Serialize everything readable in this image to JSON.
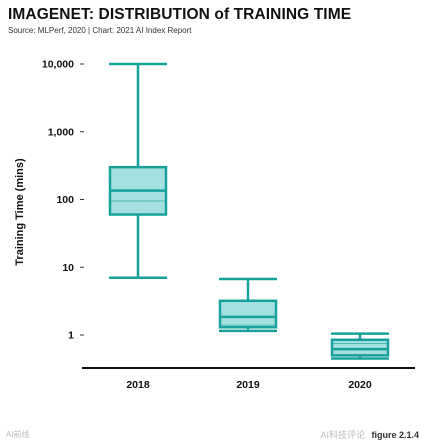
{
  "header": {
    "title": "IMAGENET: DISTRIBUTION of TRAINING TIME",
    "subtitle": "Source: MLPerf, 2020 | Chart: 2021 AI Index Report"
  },
  "figure_label": "figure 2.1.4",
  "watermarks": [
    "AI前线",
    "AI科技评论"
  ],
  "colors": {
    "box_fill": "#a6dfe0",
    "box_stroke": "#16a19a",
    "axis": "#111111"
  },
  "chart_data": {
    "type": "box",
    "title": "IMAGENET: DISTRIBUTION of TRAINING TIME",
    "xlabel": "",
    "ylabel": "Training Time (mins)",
    "yscale": "log",
    "ylim": [
      0.3,
      10000
    ],
    "yticks": [
      1,
      10,
      100,
      1000,
      10000
    ],
    "ytick_labels": [
      "1",
      "10",
      "100",
      "1,000",
      "10,000"
    ],
    "categories": [
      "2018",
      "2019",
      "2020"
    ],
    "boxes": [
      {
        "category": "2018",
        "min": 7,
        "q1": 60,
        "median": 135,
        "q3": 300,
        "max": 10000,
        "inner_line": 95
      },
      {
        "category": "2019",
        "min": 1.15,
        "q1": 1.3,
        "median": 1.85,
        "q3": 3.2,
        "max": 6.7,
        "inner_line": 1.4
      },
      {
        "category": "2020",
        "min": 0.45,
        "q1": 0.5,
        "median": 0.62,
        "q3": 0.85,
        "max": 1.05,
        "inner_line": 0.75
      }
    ],
    "grid": false
  }
}
